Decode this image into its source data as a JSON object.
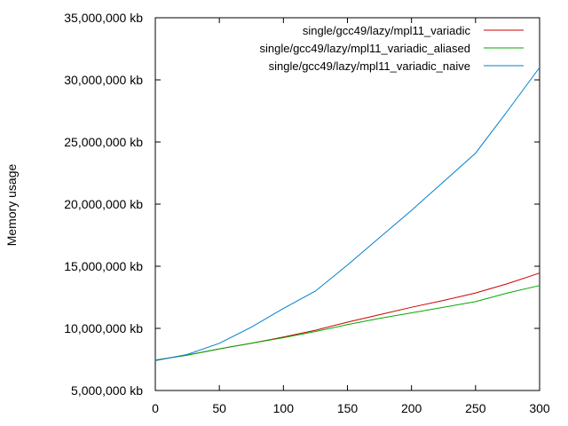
{
  "chart_data": {
    "type": "line",
    "title": "",
    "xlabel": "",
    "ylabel": "Memory usage",
    "xlim": [
      0,
      300
    ],
    "ylim": [
      5000000,
      35000000
    ],
    "xticks": [
      0,
      50,
      100,
      150,
      200,
      250,
      300
    ],
    "xtick_labels": [
      "0",
      "50",
      "100",
      "150",
      "200",
      "250",
      "300"
    ],
    "yticks": [
      5000000,
      10000000,
      15000000,
      20000000,
      25000000,
      30000000,
      35000000
    ],
    "ytick_labels": [
      "5,000,000 kb",
      "10,000,000 kb",
      "15,000,000 kb",
      "20,000,000 kb",
      "25,000,000 kb",
      "30,000,000 kb",
      "35,000,000 kb"
    ],
    "grid": false,
    "legend_position": "top-right",
    "x": [
      0,
      25,
      50,
      75,
      100,
      125,
      150,
      175,
      200,
      225,
      250,
      275,
      300
    ],
    "series": [
      {
        "name": "single/gcc49/lazy/mpl11_variadic",
        "color": "#cc0000",
        "values": [
          7450000,
          7850000,
          8350000,
          8800000,
          9300000,
          9850000,
          10500000,
          11100000,
          11700000,
          12250000,
          12850000,
          13600000,
          14450000
        ]
      },
      {
        "name": "single/gcc49/lazy/mpl11_variadic_aliased",
        "color": "#00aa00",
        "values": [
          7450000,
          7850000,
          8350000,
          8800000,
          9250000,
          9750000,
          10300000,
          10800000,
          11250000,
          11700000,
          12150000,
          12850000,
          13450000
        ]
      },
      {
        "name": "single/gcc49/lazy/mpl11_variadic_naive",
        "color": "#0080cc",
        "values": [
          7400000,
          7900000,
          8800000,
          10100000,
          11600000,
          13000000,
          15100000,
          17300000,
          19500000,
          21800000,
          24100000,
          27500000,
          31000000
        ]
      }
    ]
  }
}
